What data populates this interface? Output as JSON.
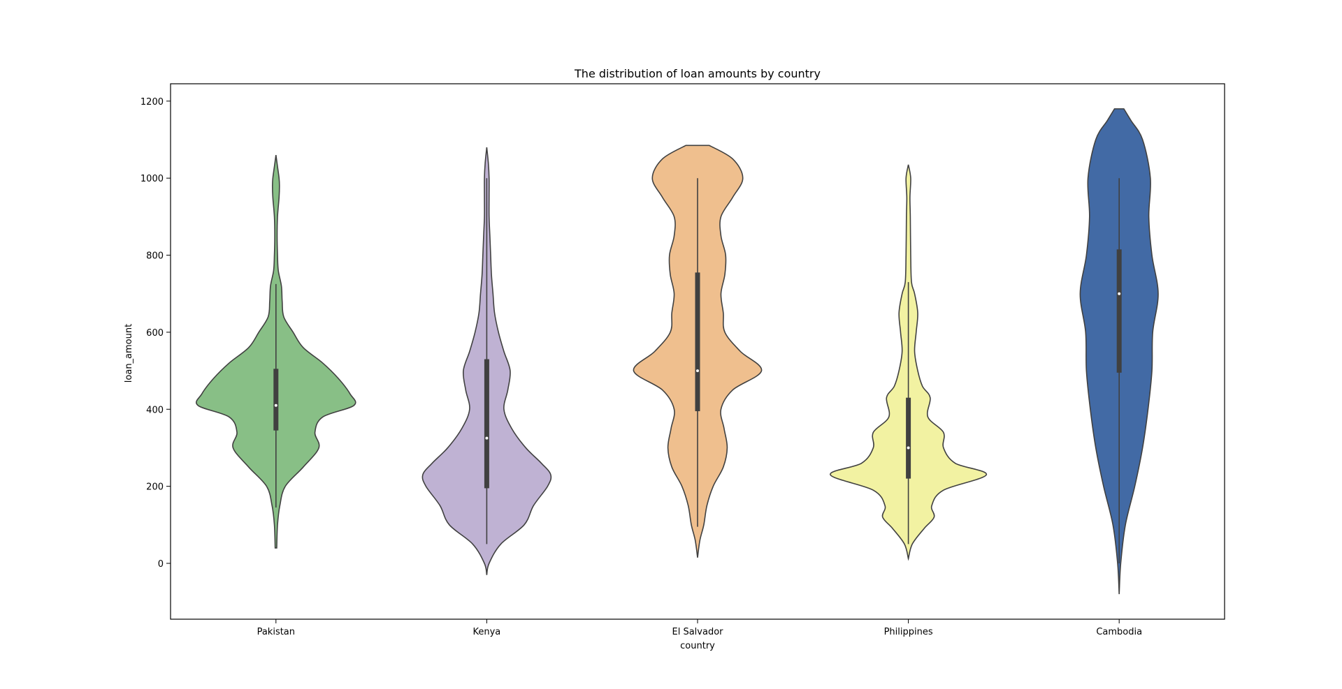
{
  "chart_data": {
    "type": "violin",
    "title": "The distribution of loan amounts by country",
    "xlabel": "country",
    "ylabel": "loan_amount",
    "ylim": [
      -145,
      1245
    ],
    "yticks": [
      0,
      200,
      400,
      600,
      800,
      1000,
      1200
    ],
    "grid": false,
    "categories": [
      "Pakistan",
      "Kenya",
      "El Salvador",
      "Philippines",
      "Cambodia"
    ],
    "colors": [
      "#88bf86",
      "#bfb2d3",
      "#efbf8e",
      "#f2f2a2",
      "#426aa5"
    ],
    "series": [
      {
        "category": "Pakistan",
        "min_extent": 40,
        "max_extent": 1060,
        "whisker_low": 145,
        "q1": 345,
        "median": 410,
        "q3": 505,
        "whisker_high": 725,
        "density": [
          [
            40,
            0.01
          ],
          [
            100,
            0.02
          ],
          [
            150,
            0.05
          ],
          [
            200,
            0.12
          ],
          [
            250,
            0.35
          ],
          [
            300,
            0.55
          ],
          [
            340,
            0.5
          ],
          [
            380,
            0.6
          ],
          [
            410,
            1.0
          ],
          [
            440,
            0.95
          ],
          [
            480,
            0.8
          ],
          [
            520,
            0.6
          ],
          [
            560,
            0.35
          ],
          [
            600,
            0.22
          ],
          [
            640,
            0.1
          ],
          [
            680,
            0.08
          ],
          [
            720,
            0.07
          ],
          [
            760,
            0.03
          ],
          [
            800,
            0.02
          ],
          [
            850,
            0.015
          ],
          [
            900,
            0.02
          ],
          [
            950,
            0.04
          ],
          [
            980,
            0.045
          ],
          [
            1000,
            0.04
          ],
          [
            1030,
            0.02
          ],
          [
            1060,
            0.0
          ]
        ]
      },
      {
        "category": "Kenya",
        "min_extent": -30,
        "max_extent": 1080,
        "whisker_low": 50,
        "q1": 195,
        "median": 325,
        "q3": 530,
        "whisker_high": 1000,
        "density": [
          [
            -30,
            0.0
          ],
          [
            0,
            0.03
          ],
          [
            50,
            0.18
          ],
          [
            100,
            0.48
          ],
          [
            150,
            0.6
          ],
          [
            200,
            0.78
          ],
          [
            230,
            0.82
          ],
          [
            260,
            0.7
          ],
          [
            300,
            0.5
          ],
          [
            350,
            0.32
          ],
          [
            400,
            0.22
          ],
          [
            450,
            0.27
          ],
          [
            500,
            0.3
          ],
          [
            550,
            0.22
          ],
          [
            600,
            0.15
          ],
          [
            650,
            0.1
          ],
          [
            700,
            0.08
          ],
          [
            750,
            0.06
          ],
          [
            800,
            0.05
          ],
          [
            850,
            0.04
          ],
          [
            900,
            0.03
          ],
          [
            950,
            0.03
          ],
          [
            1000,
            0.03
          ],
          [
            1040,
            0.02
          ],
          [
            1080,
            0.0
          ]
        ]
      },
      {
        "category": "El Salvador",
        "min_extent": 15,
        "max_extent": 1085,
        "whisker_low": 95,
        "q1": 395,
        "median": 500,
        "q3": 755,
        "whisker_high": 1000,
        "density": [
          [
            15,
            0.0
          ],
          [
            60,
            0.03
          ],
          [
            100,
            0.08
          ],
          [
            150,
            0.12
          ],
          [
            200,
            0.2
          ],
          [
            250,
            0.33
          ],
          [
            300,
            0.38
          ],
          [
            350,
            0.34
          ],
          [
            400,
            0.3
          ],
          [
            450,
            0.45
          ],
          [
            500,
            0.82
          ],
          [
            550,
            0.55
          ],
          [
            600,
            0.35
          ],
          [
            650,
            0.33
          ],
          [
            700,
            0.3
          ],
          [
            750,
            0.35
          ],
          [
            800,
            0.36
          ],
          [
            850,
            0.3
          ],
          [
            900,
            0.3
          ],
          [
            950,
            0.45
          ],
          [
            1000,
            0.58
          ],
          [
            1050,
            0.45
          ],
          [
            1085,
            0.15
          ]
        ]
      },
      {
        "category": "Philippines",
        "min_extent": 12,
        "max_extent": 1035,
        "whisker_low": 50,
        "q1": 220,
        "median": 300,
        "q3": 430,
        "whisker_high": 730,
        "density": [
          [
            12,
            0.0
          ],
          [
            50,
            0.05
          ],
          [
            90,
            0.2
          ],
          [
            120,
            0.33
          ],
          [
            150,
            0.3
          ],
          [
            190,
            0.45
          ],
          [
            230,
            1.0
          ],
          [
            260,
            0.6
          ],
          [
            300,
            0.45
          ],
          [
            340,
            0.45
          ],
          [
            380,
            0.25
          ],
          [
            430,
            0.28
          ],
          [
            460,
            0.18
          ],
          [
            500,
            0.12
          ],
          [
            550,
            0.08
          ],
          [
            600,
            0.1
          ],
          [
            650,
            0.12
          ],
          [
            700,
            0.08
          ],
          [
            730,
            0.04
          ],
          [
            800,
            0.03
          ],
          [
            900,
            0.025
          ],
          [
            950,
            0.02
          ],
          [
            1000,
            0.03
          ],
          [
            1035,
            0.0
          ]
        ]
      },
      {
        "category": "Cambodia",
        "min_extent": -80,
        "max_extent": 1180,
        "whisker_low": 0,
        "q1": 495,
        "median": 700,
        "q3": 815,
        "whisker_high": 1000,
        "density": [
          [
            -80,
            0.0
          ],
          [
            0,
            0.02
          ],
          [
            100,
            0.08
          ],
          [
            200,
            0.2
          ],
          [
            300,
            0.3
          ],
          [
            400,
            0.37
          ],
          [
            500,
            0.42
          ],
          [
            600,
            0.43
          ],
          [
            700,
            0.5
          ],
          [
            800,
            0.42
          ],
          [
            900,
            0.38
          ],
          [
            1000,
            0.4
          ],
          [
            1100,
            0.3
          ],
          [
            1150,
            0.15
          ],
          [
            1180,
            0.06
          ]
        ]
      }
    ]
  }
}
